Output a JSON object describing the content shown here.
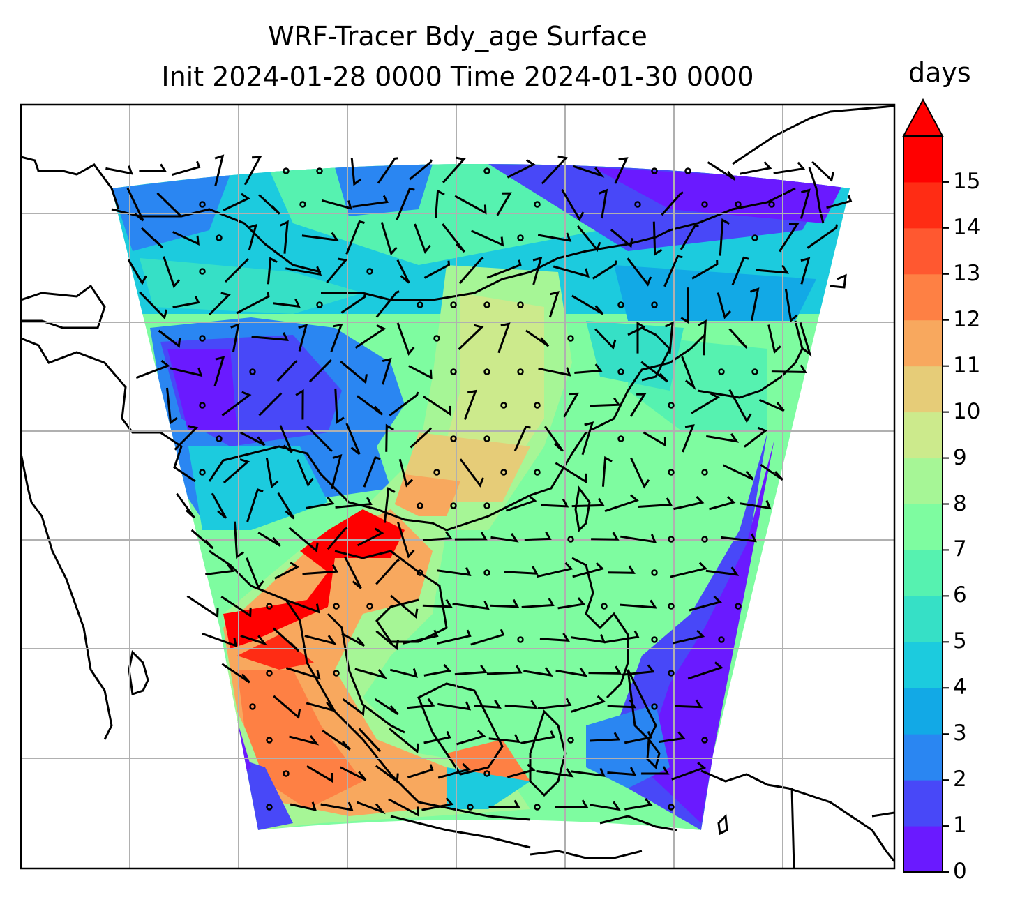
{
  "title": {
    "line1": "WRF-Tracer Bdy_age Surface",
    "line2": "Init 2024-01-28 0000 Time 2024-01-30 0000"
  },
  "colorbar": {
    "units": "days",
    "ticks": [
      "0",
      "1",
      "2",
      "3",
      "4",
      "5",
      "6",
      "7",
      "8",
      "9",
      "10",
      "11",
      "12",
      "13",
      "14",
      "15"
    ],
    "extend": "max",
    "colors": [
      "#6a1aff",
      "#4848f8",
      "#2a86f2",
      "#12a9e6",
      "#1ccbde",
      "#36e0c6",
      "#56f2b0",
      "#7efca0",
      "#a6f696",
      "#ccea8c",
      "#e6cc78",
      "#f8a85e",
      "#fe8044",
      "#ff5830",
      "#ff2c14",
      "#ff0000"
    ]
  },
  "map": {
    "grid": "on",
    "coastlines": "black",
    "barbs": "black",
    "colormap": "rainbow"
  }
}
